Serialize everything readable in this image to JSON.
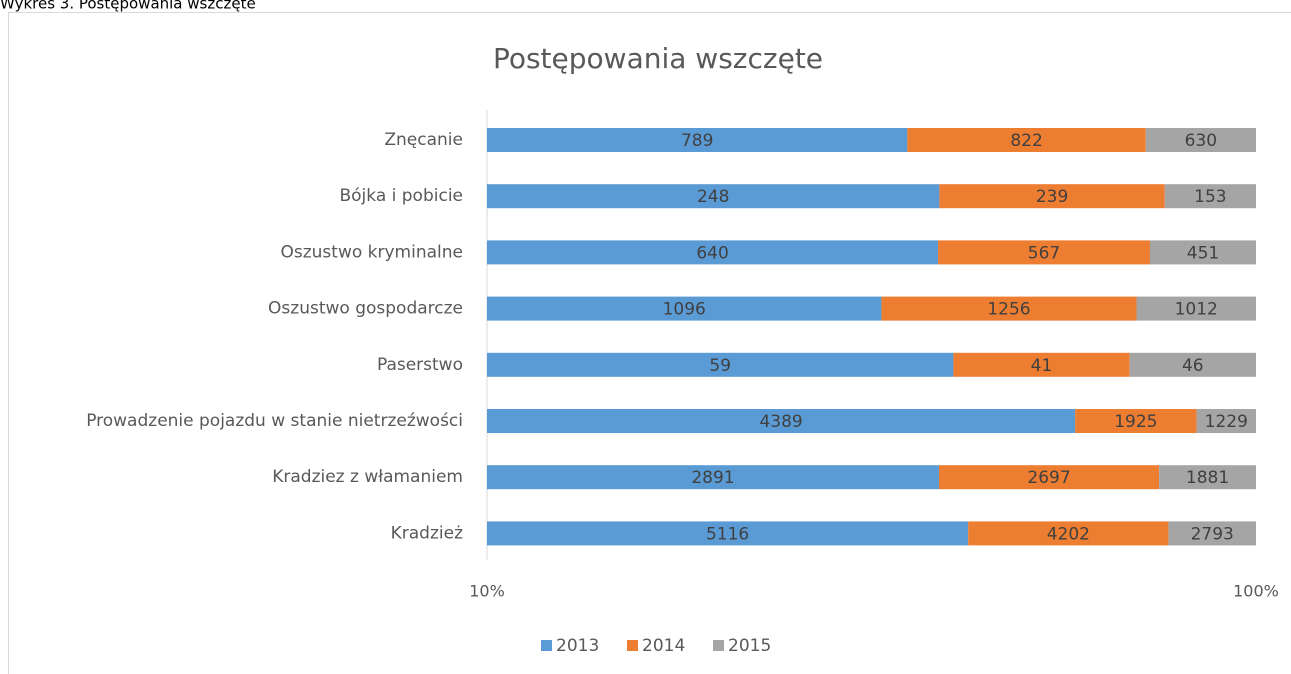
{
  "header": "Wykres 3. Postępowania wszczęte",
  "chart_data": {
    "type": "bar",
    "orientation": "horizontal",
    "stacked": "percent",
    "title": "Postępowania wszczęte",
    "categories": [
      "Znęcanie",
      "Bójka i pobicie",
      "Oszustwo kryminalne",
      "Oszustwo gospodarcze",
      "Paserstwo",
      "Prowadzenie pojazdu w stanie nietrzeźwości",
      "Kradziez z włamaniem",
      "Kradzież"
    ],
    "series": [
      {
        "name": "2013",
        "color": "#5b9bd5",
        "values": [
          789,
          248,
          640,
          1096,
          59,
          4389,
          2891,
          5116
        ]
      },
      {
        "name": "2014",
        "color": "#ed7d31",
        "values": [
          822,
          239,
          567,
          1256,
          41,
          1925,
          2697,
          4202
        ]
      },
      {
        "name": "2015",
        "color": "#a5a5a5",
        "values": [
          630,
          153,
          451,
          1012,
          46,
          1229,
          1881,
          2793
        ]
      }
    ],
    "xlim": [
      10,
      100
    ],
    "xscale": "log",
    "xticks": [
      {
        "value": 10,
        "label": "10%"
      },
      {
        "value": 100,
        "label": "100%"
      }
    ],
    "legend": "bottom"
  }
}
